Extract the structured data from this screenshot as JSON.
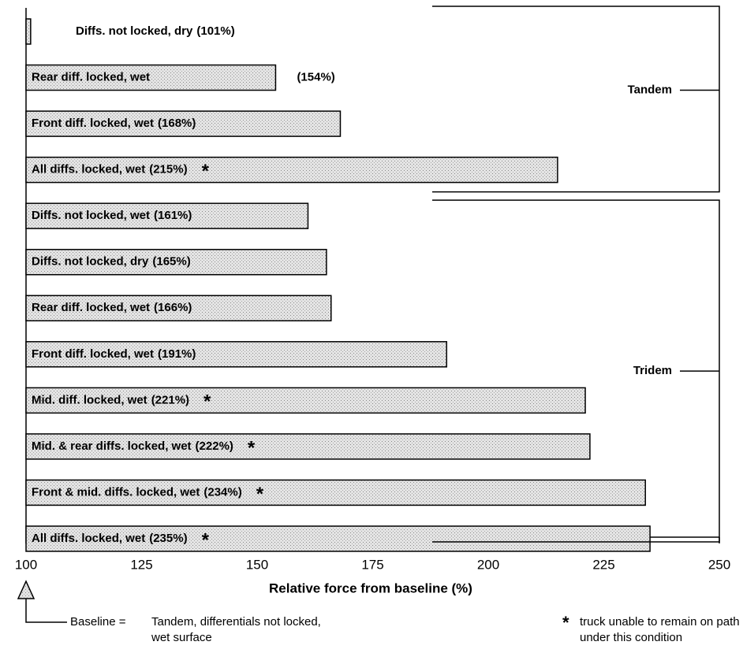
{
  "chart_data": {
    "type": "barh",
    "categories": [
      "Diffs. not locked, dry",
      "Rear diff. locked, wet",
      "Front diff. locked, wet",
      "All diffs. locked, wet",
      "Diffs. not locked, wet",
      "Diffs. not locked, dry",
      "Rear diff. locked, wet",
      "Front diff. locked, wet",
      "Mid. diff. locked, wet",
      "Mid. & rear diffs. locked, wet",
      "Front & mid. diffs. locked, wet",
      "All diffs. locked, wet"
    ],
    "values": [
      101,
      154,
      168,
      215,
      161,
      165,
      166,
      191,
      221,
      222,
      234,
      235
    ],
    "value_labels": [
      "(101%)",
      "(154%)",
      "(168%)",
      "(215%)",
      "(161%)",
      "(165%)",
      "(166%)",
      "(191%)",
      "(221%)",
      "(222%)",
      "(234%)",
      "(235%)"
    ],
    "unable": [
      false,
      false,
      false,
      true,
      false,
      false,
      false,
      false,
      true,
      true,
      true,
      true
    ],
    "color": "#d6d6d6",
    "xlim": [
      100,
      250
    ],
    "xticks": [
      100,
      125,
      150,
      175,
      200,
      225,
      250
    ],
    "xlabel": "Relative force from baseline (%)",
    "groups": [
      {
        "name": "Tandem",
        "start": 0,
        "end": 3
      },
      {
        "name": "Tridem",
        "start": 4,
        "end": 11
      }
    ],
    "asterisk": "*",
    "baseline_note": [
      "Baseline =",
      "Tandem, differentials not locked,",
      "wet surface"
    ],
    "footnote": [
      "truck unable to remain on path",
      "under this condition"
    ]
  }
}
